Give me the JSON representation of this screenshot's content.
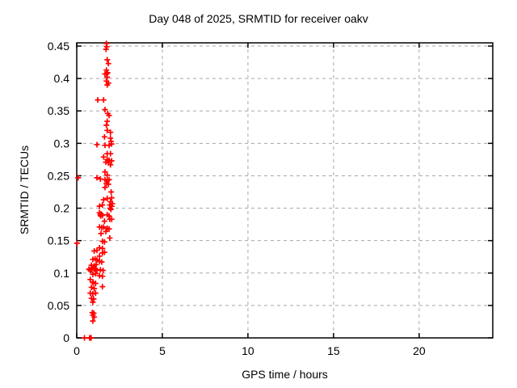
{
  "chart_data": {
    "type": "scatter",
    "title": "Day 048 of 2025, SRMTID for receiver oakv",
    "xlabel": "GPS time / hours",
    "ylabel": "SRMTID / TECUs",
    "xlim": [
      0,
      24.3
    ],
    "ylim": [
      0,
      0.455
    ],
    "xticks": [
      0,
      5,
      10,
      15,
      20
    ],
    "xtick_labels": [
      "0",
      "5",
      "10",
      "15",
      "20"
    ],
    "yticks": [
      0,
      0.05,
      0.1,
      0.15,
      0.2,
      0.25,
      0.3,
      0.35,
      0.4,
      0.45
    ],
    "ytick_labels": [
      "0",
      "0.05",
      "0.1",
      "0.15",
      "0.2",
      "0.25",
      "0.3",
      "0.35",
      "0.4",
      "0.45"
    ],
    "grid": true,
    "legend": "none",
    "marker": {
      "shape": "plus",
      "size": 7
    },
    "series": [
      {
        "name": "SRMTID",
        "points": [
          [
            1.73,
            0.454
          ],
          [
            1.76,
            0.449
          ],
          [
            1.71,
            0.445
          ],
          [
            1.78,
            0.429
          ],
          [
            1.85,
            0.423
          ],
          [
            1.73,
            0.413
          ],
          [
            1.8,
            0.409
          ],
          [
            1.75,
            0.407
          ],
          [
            1.65,
            0.407
          ],
          [
            1.78,
            0.402
          ],
          [
            1.73,
            0.396
          ],
          [
            1.85,
            0.393
          ],
          [
            1.78,
            0.39
          ],
          [
            1.23,
            0.367
          ],
          [
            1.57,
            0.367
          ],
          [
            1.65,
            0.352
          ],
          [
            1.81,
            0.346
          ],
          [
            1.89,
            0.343
          ],
          [
            1.78,
            0.334
          ],
          [
            1.73,
            0.328
          ],
          [
            1.78,
            0.32
          ],
          [
            1.97,
            0.317
          ],
          [
            1.62,
            0.31
          ],
          [
            1.97,
            0.308
          ],
          [
            2.01,
            0.303
          ],
          [
            1.18,
            0.298
          ],
          [
            1.65,
            0.297
          ],
          [
            1.89,
            0.297
          ],
          [
            2.04,
            0.299
          ],
          [
            1.78,
            0.284
          ],
          [
            1.97,
            0.284
          ],
          [
            1.57,
            0.279
          ],
          [
            1.78,
            0.275
          ],
          [
            1.89,
            0.274
          ],
          [
            2.04,
            0.273
          ],
          [
            1.7,
            0.271
          ],
          [
            1.85,
            0.27
          ],
          [
            1.97,
            0.267
          ],
          [
            1.65,
            0.256
          ],
          [
            1.78,
            0.251
          ],
          [
            0.08,
            0.247
          ],
          [
            1.18,
            0.247
          ],
          [
            1.38,
            0.245
          ],
          [
            1.65,
            0.244
          ],
          [
            1.78,
            0.243
          ],
          [
            1.89,
            0.244
          ],
          [
            1.73,
            0.238
          ],
          [
            1.85,
            0.237
          ],
          [
            1.65,
            0.232
          ],
          [
            2.01,
            0.225
          ],
          [
            1.57,
            0.213
          ],
          [
            1.78,
            0.215
          ],
          [
            2.04,
            0.216
          ],
          [
            1.97,
            0.21
          ],
          [
            2.08,
            0.207
          ],
          [
            1.33,
            0.203
          ],
          [
            1.5,
            0.205
          ],
          [
            1.93,
            0.205
          ],
          [
            2.04,
            0.203
          ],
          [
            1.95,
            0.2
          ],
          [
            2.0,
            0.198
          ],
          [
            1.33,
            0.193
          ],
          [
            1.42,
            0.191
          ],
          [
            1.37,
            0.19
          ],
          [
            1.5,
            0.189
          ],
          [
            1.78,
            0.19
          ],
          [
            1.89,
            0.188
          ],
          [
            1.4,
            0.188
          ],
          [
            1.93,
            0.183
          ],
          [
            2.04,
            0.183
          ],
          [
            1.62,
            0.18
          ],
          [
            1.33,
            0.171
          ],
          [
            1.46,
            0.17
          ],
          [
            1.57,
            0.171
          ],
          [
            1.78,
            0.169
          ],
          [
            1.89,
            0.168
          ],
          [
            1.7,
            0.164
          ],
          [
            1.42,
            0.161
          ],
          [
            1.93,
            0.154
          ],
          [
            0.02,
            0.146
          ],
          [
            1.5,
            0.149
          ],
          [
            1.62,
            0.148
          ],
          [
            1.33,
            0.139
          ],
          [
            1.5,
            0.138
          ],
          [
            1.02,
            0.134
          ],
          [
            1.18,
            0.135
          ],
          [
            1.5,
            0.131
          ],
          [
            1.62,
            0.132
          ],
          [
            1.33,
            0.126
          ],
          [
            0.94,
            0.121
          ],
          [
            1.07,
            0.122
          ],
          [
            1.18,
            0.12
          ],
          [
            1.33,
            0.118
          ],
          [
            1.46,
            0.117
          ],
          [
            0.86,
            0.112
          ],
          [
            1.02,
            0.111
          ],
          [
            1.13,
            0.113
          ],
          [
            0.71,
            0.106
          ],
          [
            0.86,
            0.108
          ],
          [
            0.99,
            0.109
          ],
          [
            1.1,
            0.106
          ],
          [
            0.79,
            0.104
          ],
          [
            0.86,
            0.105
          ],
          [
            1.02,
            0.106
          ],
          [
            1.18,
            0.104
          ],
          [
            1.38,
            0.105
          ],
          [
            1.54,
            0.104
          ],
          [
            0.94,
            0.098
          ],
          [
            1.1,
            0.099
          ],
          [
            1.33,
            0.096
          ],
          [
            1.5,
            0.095
          ],
          [
            0.79,
            0.09
          ],
          [
            0.94,
            0.086
          ],
          [
            0.96,
            0.085
          ],
          [
            1.1,
            0.084
          ],
          [
            1.5,
            0.079
          ],
          [
            0.86,
            0.078
          ],
          [
            1.02,
            0.076
          ],
          [
            0.79,
            0.069
          ],
          [
            0.94,
            0.068
          ],
          [
            1.1,
            0.069
          ],
          [
            0.86,
            0.061
          ],
          [
            0.99,
            0.06
          ],
          [
            0.94,
            0.055
          ],
          [
            0.91,
            0.039
          ],
          [
            0.99,
            0.038
          ],
          [
            0.94,
            0.035
          ],
          [
            1.02,
            0.032
          ],
          [
            0.94,
            0.026
          ],
          [
            0.45,
            0.0
          ],
          [
            0.75,
            0.0
          ],
          [
            0.78,
            0.0
          ],
          [
            0.81,
            0.0
          ],
          [
            0.84,
            0.0
          ]
        ]
      }
    ]
  },
  "colors": {
    "marker": "#ff0000",
    "grid": "#a8a8a8",
    "frame": "#000000",
    "background": "#ffffff",
    "text": "#000000"
  }
}
